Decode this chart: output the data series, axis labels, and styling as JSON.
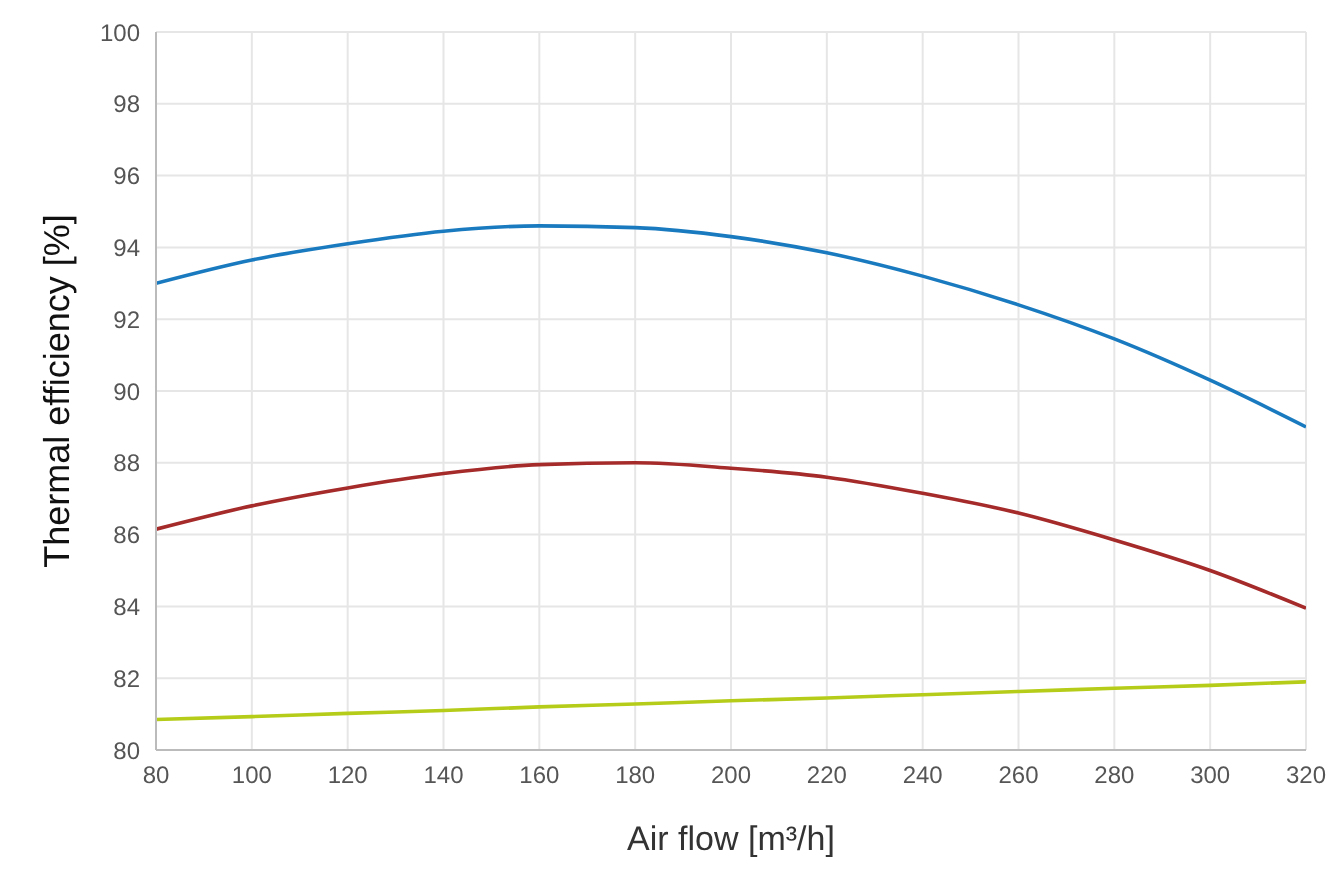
{
  "chart_data": {
    "type": "line",
    "xlabel": "Air flow [m³/h]",
    "ylabel": "Thermal efficiency [%]",
    "x": [
      80,
      100,
      120,
      140,
      160,
      180,
      200,
      220,
      240,
      260,
      280,
      300,
      320
    ],
    "series": [
      {
        "color": "#1a7abf",
        "values": [
          93.0,
          93.65,
          94.1,
          94.45,
          94.6,
          94.55,
          94.3,
          93.85,
          93.2,
          92.4,
          91.45,
          90.3,
          89.0
        ]
      },
      {
        "color": "#a52a2a",
        "values": [
          86.15,
          86.8,
          87.3,
          87.7,
          87.95,
          88.0,
          87.85,
          87.6,
          87.15,
          86.6,
          85.85,
          85.0,
          83.95
        ]
      },
      {
        "color": "#b5cc18",
        "values": [
          80.85,
          80.93,
          81.02,
          81.1,
          81.2,
          81.28,
          81.37,
          81.45,
          81.54,
          81.63,
          81.72,
          81.8,
          81.9
        ]
      }
    ],
    "xlim": [
      80,
      320
    ],
    "xticks": [
      80,
      100,
      120,
      140,
      160,
      180,
      200,
      220,
      240,
      260,
      280,
      300,
      320
    ],
    "ylim": [
      80,
      100
    ],
    "yticks": [
      80,
      82,
      84,
      86,
      88,
      90,
      92,
      94,
      96,
      98,
      100
    ],
    "grid": true,
    "legend": false,
    "marker": "none",
    "line_style": "solid"
  }
}
